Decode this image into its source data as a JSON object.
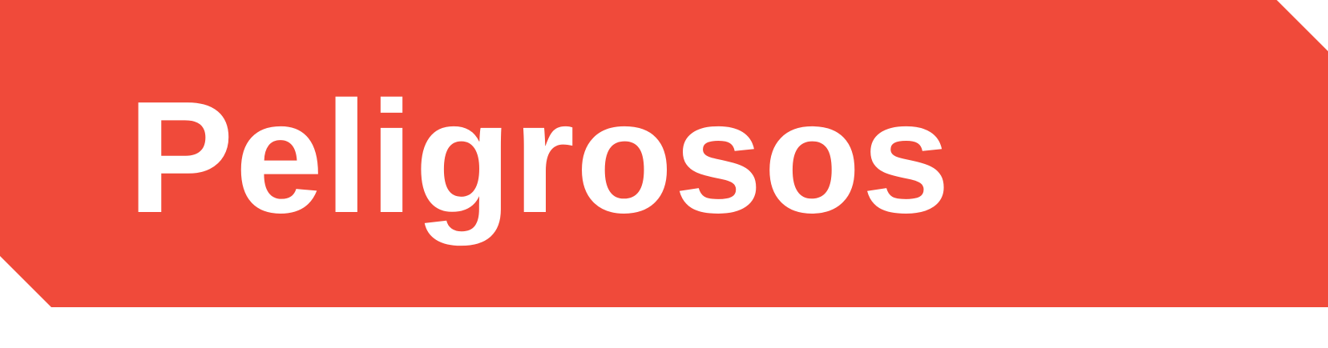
{
  "banner": {
    "title": "Peligrosos",
    "background_color": "#F04A3A",
    "text_color": "#FFFFFF"
  }
}
